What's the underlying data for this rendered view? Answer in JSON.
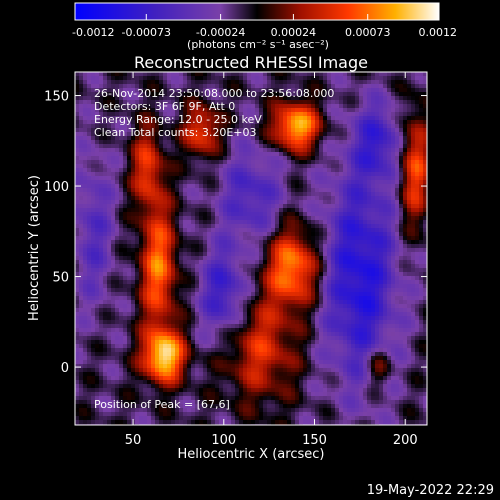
{
  "chart_data": {
    "type": "heatmap",
    "title": "Reconstructed RHESSI Image",
    "xlabel": "Heliocentric X (arcsec)",
    "ylabel": "Heliocentric Y (arcsec)",
    "xlim": [
      18,
      212
    ],
    "ylim": [
      -32,
      163
    ],
    "x_ticks": [
      50,
      100,
      150,
      200
    ],
    "y_ticks": [
      0,
      50,
      100,
      150
    ],
    "colorbar": {
      "range": [
        -0.0012,
        0.0012
      ],
      "tick_values": [
        -0.0012,
        -0.00073,
        -0.00024,
        0.00024,
        0.00073,
        0.0012
      ],
      "tick_labels": [
        "-0.0012",
        "-0.00073",
        "-0.00024",
        "0.00024",
        "0.00073",
        "0.0012"
      ],
      "units_label": "(photons cm⁻² s⁻¹ asec⁻²)"
    },
    "annotations": [
      "26-Nov-2014 23:50:08.000 to 23:56:08.000",
      "Detectors: 3F 6F 9F, Att 0",
      "Energy Range: 12.0 - 25.0 keV",
      "Clean    Total counts: 3.20E+03"
    ],
    "peak_label": "Position of Peak = [67,6]",
    "peak": [
      67,
      6
    ],
    "sources": [
      {
        "x": 67,
        "y": 6,
        "sx": 8,
        "sy": 10,
        "amp": 0.0012
      },
      {
        "x": 64,
        "y": 55,
        "sx": 7,
        "sy": 24,
        "amp": 0.00085
      },
      {
        "x": 58,
        "y": 110,
        "sx": 6,
        "sy": 16,
        "amp": 0.00065
      },
      {
        "x": 88,
        "y": 130,
        "sx": 7,
        "sy": 10,
        "amp": 0.0007
      },
      {
        "x": 140,
        "y": 133,
        "sx": 9,
        "sy": 9,
        "amp": 0.0011
      },
      {
        "x": 138,
        "y": 55,
        "sx": 10,
        "sy": 15,
        "amp": 0.00095
      },
      {
        "x": 120,
        "y": 10,
        "sx": 14,
        "sy": 20,
        "amp": 0.0006
      },
      {
        "x": 205,
        "y": 110,
        "sx": 6,
        "sy": 22,
        "amp": 0.00075
      },
      {
        "x": 185,
        "y": 0,
        "sx": 5,
        "sy": 8,
        "amp": 0.00045
      },
      {
        "x": 100,
        "y": 40,
        "sx": 9,
        "sy": 18,
        "amp": -0.00065
      },
      {
        "x": 175,
        "y": 50,
        "sx": 14,
        "sy": 40,
        "amp": -0.0008
      },
      {
        "x": 115,
        "y": 95,
        "sx": 12,
        "sy": 18,
        "amp": -0.0005
      },
      {
        "x": 185,
        "y": 125,
        "sx": 10,
        "sy": 15,
        "amp": -0.00055
      },
      {
        "x": 28,
        "y": 75,
        "sx": 8,
        "sy": 30,
        "amp": -0.0004
      }
    ]
  },
  "timestamp": "19-May-2022 22:29"
}
